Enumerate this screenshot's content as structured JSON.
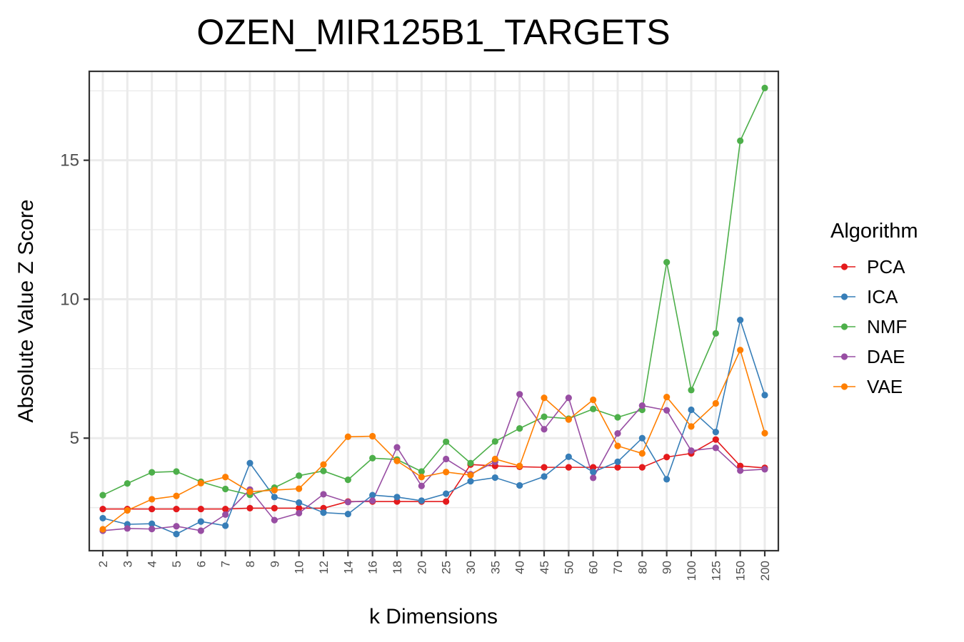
{
  "chart_data": {
    "type": "line",
    "title": "OZEN_MIR125B1_TARGETS",
    "xlabel": "k Dimensions",
    "ylabel": "Absolute Value Z Score",
    "categories": [
      "2",
      "3",
      "4",
      "5",
      "6",
      "7",
      "8",
      "9",
      "10",
      "12",
      "14",
      "16",
      "18",
      "20",
      "25",
      "30",
      "35",
      "40",
      "45",
      "50",
      "60",
      "70",
      "80",
      "90",
      "100",
      "125",
      "150",
      "200"
    ],
    "yticks": [
      5,
      10,
      15
    ],
    "ylim": [
      0.95,
      18.2
    ],
    "grid": true,
    "legend": {
      "title": "Algorithm",
      "position": "right"
    },
    "series": [
      {
        "name": "PCA",
        "color": "#e41a1c",
        "values": [
          2.45,
          2.45,
          2.45,
          2.45,
          2.45,
          2.45,
          2.48,
          2.48,
          2.48,
          2.48,
          2.72,
          2.72,
          2.72,
          2.72,
          2.72,
          4.05,
          4.0,
          3.97,
          3.95,
          3.95,
          3.95,
          3.95,
          3.95,
          4.32,
          4.45,
          4.95,
          4.0,
          3.93
        ]
      },
      {
        "name": "ICA",
        "color": "#377eb8",
        "values": [
          2.12,
          1.9,
          1.92,
          1.55,
          2.0,
          1.85,
          4.1,
          2.88,
          2.68,
          2.32,
          2.27,
          2.95,
          2.88,
          2.75,
          3.0,
          3.45,
          3.58,
          3.3,
          3.62,
          4.33,
          3.78,
          4.15,
          5.0,
          3.52,
          6.02,
          5.22,
          9.25,
          6.55
        ]
      },
      {
        "name": "NMF",
        "color": "#4daf4a",
        "values": [
          2.95,
          3.37,
          3.77,
          3.8,
          3.43,
          3.17,
          2.96,
          3.22,
          3.65,
          3.82,
          3.5,
          4.28,
          4.23,
          3.8,
          4.87,
          4.1,
          4.88,
          5.35,
          5.77,
          5.7,
          6.05,
          5.75,
          6.02,
          11.33,
          6.73,
          8.77,
          15.7,
          17.6
        ]
      },
      {
        "name": "DAE",
        "color": "#984ea3",
        "values": [
          1.67,
          1.75,
          1.73,
          1.83,
          1.67,
          2.25,
          3.15,
          2.05,
          2.3,
          2.98,
          2.7,
          2.75,
          4.67,
          3.28,
          4.25,
          3.7,
          4.15,
          6.58,
          5.32,
          6.45,
          3.57,
          5.17,
          6.17,
          6.0,
          4.55,
          4.65,
          3.83,
          3.88
        ]
      },
      {
        "name": "VAE",
        "color": "#ff7f00",
        "values": [
          1.72,
          2.4,
          2.8,
          2.92,
          3.38,
          3.6,
          3.07,
          3.13,
          3.18,
          4.05,
          5.05,
          5.07,
          4.18,
          3.6,
          3.78,
          3.67,
          4.25,
          4.0,
          6.45,
          5.67,
          6.38,
          4.72,
          4.45,
          6.48,
          5.42,
          6.25,
          8.17,
          5.18
        ]
      }
    ]
  }
}
